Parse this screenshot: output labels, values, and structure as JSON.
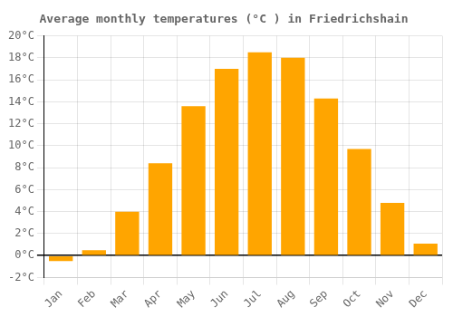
{
  "chart_data": {
    "type": "bar",
    "title": "Average monthly temperatures (°C ) in Friedrichshain",
    "categories": [
      "Jan",
      "Feb",
      "Mar",
      "Apr",
      "May",
      "Jun",
      "Jul",
      "Aug",
      "Sep",
      "Oct",
      "Nov",
      "Dec"
    ],
    "values": [
      -0.5,
      0.5,
      4.0,
      8.4,
      13.6,
      17.0,
      18.5,
      18.0,
      14.3,
      9.7,
      4.8,
      1.1
    ],
    "color": "#FFA500",
    "ylim": [
      -2,
      20
    ],
    "yticks": [
      {
        "value": -2,
        "label": "-2°C"
      },
      {
        "value": 0,
        "label": "0°C"
      },
      {
        "value": 2,
        "label": "2°C"
      },
      {
        "value": 4,
        "label": "4°C"
      },
      {
        "value": 6,
        "label": "6°C"
      },
      {
        "value": 8,
        "label": "8°C"
      },
      {
        "value": 10,
        "label": "10°C"
      },
      {
        "value": 12,
        "label": "12°C"
      },
      {
        "value": 14,
        "label": "14°C"
      },
      {
        "value": 16,
        "label": "16°C"
      },
      {
        "value": 18,
        "label": "18°C"
      },
      {
        "value": 20,
        "label": "20°C"
      }
    ],
    "grid": true
  }
}
